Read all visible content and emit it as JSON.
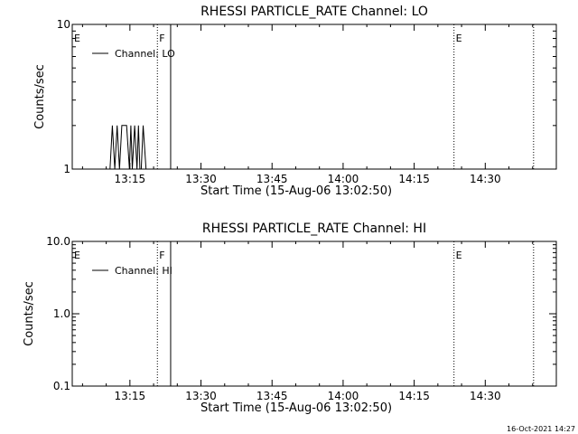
{
  "footer_timestamp": "16-Oct-2021 14:27",
  "chart_data": [
    {
      "type": "line",
      "title": "RHESSI PARTICLE_RATE Channel: LO",
      "xlabel": "Start Time (15-Aug-06 13:02:50)",
      "ylabel": "Counts/sec",
      "x_ticks": [
        "13:15",
        "13:30",
        "13:45",
        "14:00",
        "14:15",
        "14:30"
      ],
      "x_tick_minutes": [
        795,
        810,
        825,
        840,
        855,
        870
      ],
      "xlim_minutes": [
        782.83,
        885
      ],
      "y_scale": "log",
      "ylim": [
        1,
        10
      ],
      "y_ticks": [
        "1",
        "10"
      ],
      "y_tick_values": [
        1,
        10
      ],
      "legend": "Channel: LO",
      "legend_position": "top-left",
      "markers": [
        {
          "label": "E",
          "t_minute": 782.83,
          "style": "edge"
        },
        {
          "label": "F",
          "t_minute": 800.8,
          "style": "dotted"
        },
        {
          "label": "",
          "t_minute": 803.6,
          "style": "solid"
        },
        {
          "label": "E",
          "t_minute": 863.4,
          "style": "dotted"
        },
        {
          "label": "",
          "t_minute": 880.2,
          "style": "dotted"
        }
      ],
      "series": [
        {
          "name": "Channel: LO",
          "x_minutes": [
            790.8,
            791.3,
            791.8,
            792.3,
            792.8,
            793.3,
            793.8,
            794.3,
            794.9,
            795.2,
            795.5,
            796.0,
            796.5,
            796.8,
            797.1,
            797.4,
            797.8,
            798.4,
            798.9
          ],
          "values": [
            1,
            2,
            1,
            2,
            1,
            2,
            2,
            2,
            1,
            2,
            1,
            2,
            1,
            2,
            1,
            1,
            2,
            1,
            1
          ]
        }
      ]
    },
    {
      "type": "line",
      "title": "RHESSI PARTICLE_RATE Channel: HI",
      "xlabel": "Start Time (15-Aug-06 13:02:50)",
      "ylabel": "Counts/sec",
      "x_ticks": [
        "13:15",
        "13:30",
        "13:45",
        "14:00",
        "14:15",
        "14:30"
      ],
      "x_tick_minutes": [
        795,
        810,
        825,
        840,
        855,
        870
      ],
      "xlim_minutes": [
        782.83,
        885
      ],
      "y_scale": "log",
      "ylim": [
        0.1,
        10
      ],
      "y_ticks": [
        "0.1",
        "1.0",
        "10.0"
      ],
      "y_tick_values": [
        0.1,
        1,
        10
      ],
      "legend": "Channel: HI",
      "legend_position": "top-left",
      "markers": [
        {
          "label": "E",
          "t_minute": 782.83,
          "style": "edge"
        },
        {
          "label": "F",
          "t_minute": 800.8,
          "style": "dotted"
        },
        {
          "label": "",
          "t_minute": 803.6,
          "style": "solid"
        },
        {
          "label": "E",
          "t_minute": 863.4,
          "style": "dotted"
        },
        {
          "label": "",
          "t_minute": 880.2,
          "style": "dotted"
        }
      ],
      "series": [
        {
          "name": "Channel: HI",
          "x_minutes": [],
          "values": []
        }
      ]
    }
  ]
}
